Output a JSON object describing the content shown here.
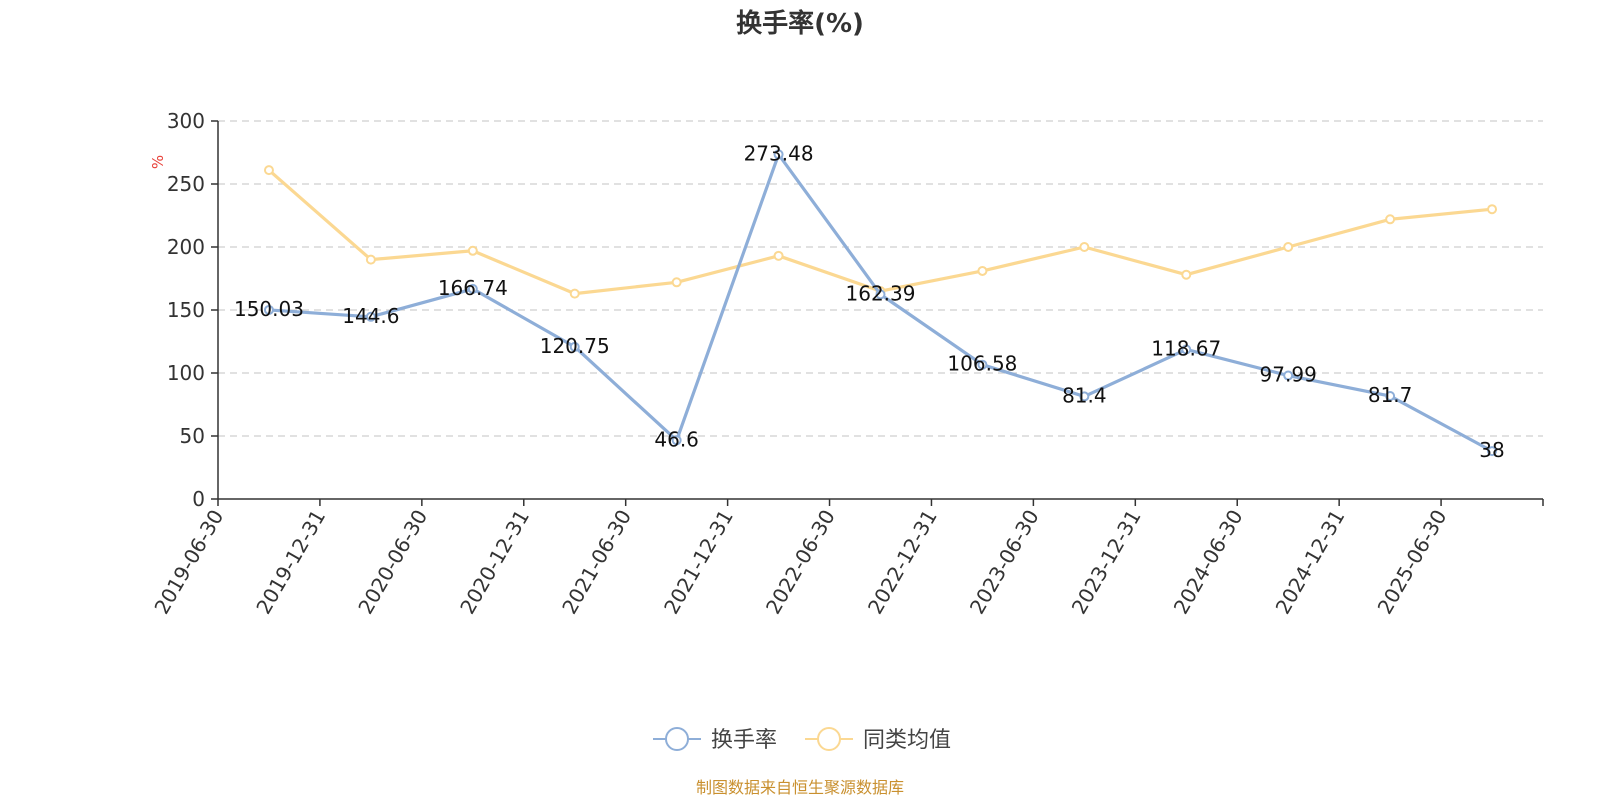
{
  "chart_data": {
    "type": "line",
    "title": "换手率(%)",
    "ylabel": "%",
    "ylim": [
      0,
      300
    ],
    "yticks": [
      0,
      50,
      100,
      150,
      200,
      250,
      300
    ],
    "grid": true,
    "legend_position": "bottom-center",
    "categories": [
      "2019-06-30",
      "2019-12-31",
      "2020-06-30",
      "2020-12-31",
      "2021-06-30",
      "2021-12-31",
      "2022-06-30",
      "2022-12-31",
      "2023-06-30",
      "2023-12-31",
      "2024-06-30",
      "2024-12-31",
      "2025-06-30"
    ],
    "series": [
      {
        "name": "换手率",
        "color": "#8eaed8",
        "values": [
          150.03,
          144.6,
          166.74,
          120.75,
          46.6,
          273.48,
          162.39,
          106.58,
          81.4,
          118.67,
          97.99,
          81.7,
          38
        ],
        "labels": [
          "150.03",
          "144.6",
          "166.74",
          "120.75",
          "46.6",
          "273.48",
          "162.39",
          "106.58",
          "81.4",
          "118.67",
          "97.99",
          "81.7",
          "38"
        ]
      },
      {
        "name": "同类均值",
        "color": "#fbd892",
        "values": [
          261,
          190,
          197,
          163,
          172,
          193,
          165,
          181,
          200,
          178,
          200,
          222,
          230
        ]
      }
    ],
    "source_note": "制图数据来自恒生聚源数据库"
  }
}
